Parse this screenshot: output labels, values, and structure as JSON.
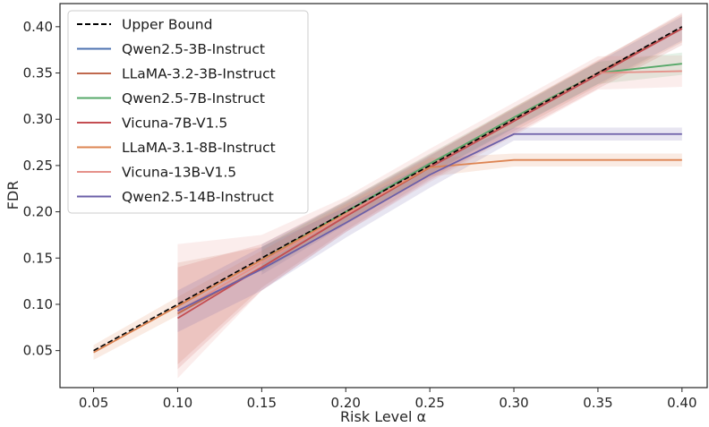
{
  "chart_data": {
    "type": "line",
    "title": "",
    "xlabel": "Risk Level α",
    "ylabel": "FDR",
    "xlim": [
      0.03,
      0.415
    ],
    "ylim": [
      0.01,
      0.425
    ],
    "xticks": [
      0.05,
      0.1,
      0.15,
      0.2,
      0.25,
      0.3,
      0.35,
      0.4
    ],
    "xtick_labels": [
      "0.05",
      "0.10",
      "0.15",
      "0.20",
      "0.25",
      "0.30",
      "0.35",
      "0.40"
    ],
    "yticks": [
      0.05,
      0.1,
      0.15,
      0.2,
      0.25,
      0.3,
      0.35,
      0.4
    ],
    "ytick_labels": [
      "0.05",
      "0.10",
      "0.15",
      "0.20",
      "0.25",
      "0.30",
      "0.35",
      "0.40"
    ],
    "grid": false,
    "legend_position": "top-left",
    "upper_bound": {
      "name": "Upper Bound",
      "color": "#000000",
      "x": [
        0.05,
        0.4
      ],
      "y": [
        0.05,
        0.4
      ]
    },
    "series": [
      {
        "name": "Qwen2.5-3B-Instruct",
        "color": "#4c72b0",
        "x": [
          0.15,
          0.2,
          0.25,
          0.3,
          0.35,
          0.4
        ],
        "y": [
          0.148,
          0.198,
          0.25,
          0.3,
          0.35,
          0.398
        ],
        "lower": [
          0.132,
          0.186,
          0.24,
          0.29,
          0.338,
          0.385
        ],
        "upper": [
          0.165,
          0.211,
          0.261,
          0.311,
          0.362,
          0.411
        ]
      },
      {
        "name": "LLaMA-3.2-3B-Instruct",
        "color": "#c0694e",
        "x": [
          0.1,
          0.15,
          0.2,
          0.25,
          0.3,
          0.35,
          0.4
        ],
        "y": [
          0.09,
          0.14,
          0.195,
          0.248,
          0.3,
          0.35,
          0.398
        ],
        "lower": [
          0.035,
          0.118,
          0.18,
          0.236,
          0.287,
          0.336,
          0.383
        ],
        "upper": [
          0.145,
          0.162,
          0.21,
          0.26,
          0.313,
          0.364,
          0.413
        ]
      },
      {
        "name": "Qwen2.5-7B-Instruct",
        "color": "#55a868",
        "x": [
          0.15,
          0.2,
          0.25,
          0.3,
          0.35,
          0.4
        ],
        "y": [
          0.148,
          0.2,
          0.252,
          0.302,
          0.35,
          0.36
        ],
        "lower": [
          0.135,
          0.188,
          0.241,
          0.291,
          0.338,
          0.348
        ],
        "upper": [
          0.162,
          0.212,
          0.263,
          0.313,
          0.362,
          0.372
        ]
      },
      {
        "name": "Vicuna-7B-V1.5",
        "color": "#c44e52",
        "x": [
          0.1,
          0.15,
          0.2,
          0.25,
          0.3,
          0.35,
          0.4
        ],
        "y": [
          0.085,
          0.14,
          0.195,
          0.248,
          0.298,
          0.348,
          0.398
        ],
        "lower": [
          0.03,
          0.115,
          0.178,
          0.234,
          0.284,
          0.333,
          0.38
        ],
        "upper": [
          0.14,
          0.165,
          0.212,
          0.262,
          0.312,
          0.363,
          0.415
        ]
      },
      {
        "name": "LLaMA-3.1-8B-Instruct",
        "color": "#dd8452",
        "x": [
          0.05,
          0.1,
          0.15,
          0.2,
          0.25,
          0.3,
          0.35,
          0.4
        ],
        "y": [
          0.048,
          0.098,
          0.148,
          0.198,
          0.248,
          0.256,
          0.256,
          0.256
        ],
        "lower": [
          0.04,
          0.088,
          0.138,
          0.188,
          0.238,
          0.249,
          0.249,
          0.249
        ],
        "upper": [
          0.056,
          0.108,
          0.158,
          0.208,
          0.258,
          0.263,
          0.263,
          0.263
        ]
      },
      {
        "name": "Vicuna-13B-V1.5",
        "color": "#e5918a",
        "x": [
          0.1,
          0.15,
          0.2,
          0.25,
          0.3,
          0.35,
          0.4
        ],
        "y": [
          0.092,
          0.145,
          0.197,
          0.25,
          0.3,
          0.35,
          0.352
        ],
        "lower": [
          0.02,
          0.115,
          0.178,
          0.232,
          0.282,
          0.332,
          0.335
        ],
        "upper": [
          0.165,
          0.175,
          0.216,
          0.268,
          0.318,
          0.368,
          0.369
        ]
      },
      {
        "name": "Qwen2.5-14B-Instruct",
        "color": "#6b5fa8",
        "x": [
          0.1,
          0.15,
          0.2,
          0.25,
          0.3,
          0.35,
          0.4
        ],
        "y": [
          0.093,
          0.138,
          0.188,
          0.24,
          0.284,
          0.284,
          0.284
        ],
        "lower": [
          0.07,
          0.115,
          0.172,
          0.226,
          0.277,
          0.277,
          0.277
        ],
        "upper": [
          0.115,
          0.162,
          0.205,
          0.254,
          0.291,
          0.291,
          0.291
        ]
      }
    ]
  }
}
